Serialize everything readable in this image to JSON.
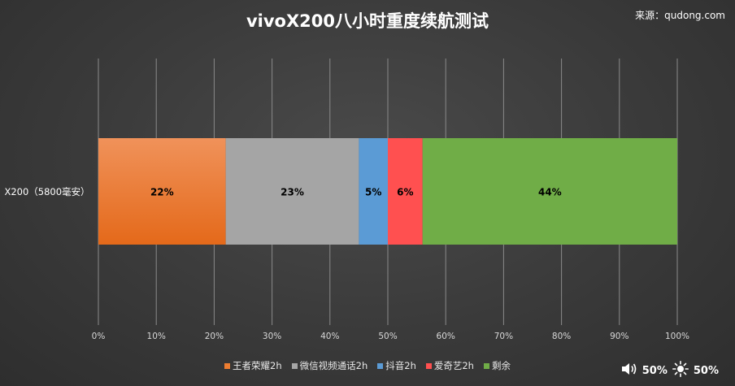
{
  "title": "vivoX200八小时重度续航测试",
  "source": "来源：qudong.com",
  "status": {
    "volume_icon": "speaker-icon",
    "volume_value": "50%",
    "brightness_icon": "sun-icon",
    "brightness_value": "50%"
  },
  "chart_data": {
    "type": "bar",
    "orientation": "horizontal",
    "stacked": true,
    "percent_stacked": true,
    "categories": [
      "X200（5800毫安）"
    ],
    "series": [
      {
        "name": "王者荣耀2h",
        "values": [
          22
        ],
        "label": "22%",
        "color": "#ed7d31"
      },
      {
        "name": "微信视频通话2h",
        "values": [
          23
        ],
        "label": "23%",
        "color": "#a5a5a5"
      },
      {
        "name": "抖音2h",
        "values": [
          5
        ],
        "label": "5%",
        "color": "#5b9bd5"
      },
      {
        "name": "爱奇艺2h",
        "values": [
          6
        ],
        "label": "6%",
        "color": "#ff5050"
      },
      {
        "name": "剩余",
        "values": [
          44
        ],
        "label": "44%",
        "color": "#70ad47"
      }
    ],
    "xlim": [
      0,
      100
    ],
    "xticks": [
      "0%",
      "10%",
      "20%",
      "30%",
      "40%",
      "50%",
      "60%",
      "70%",
      "80%",
      "90%",
      "100%"
    ],
    "grid": "vertical",
    "legend": "bottom"
  }
}
